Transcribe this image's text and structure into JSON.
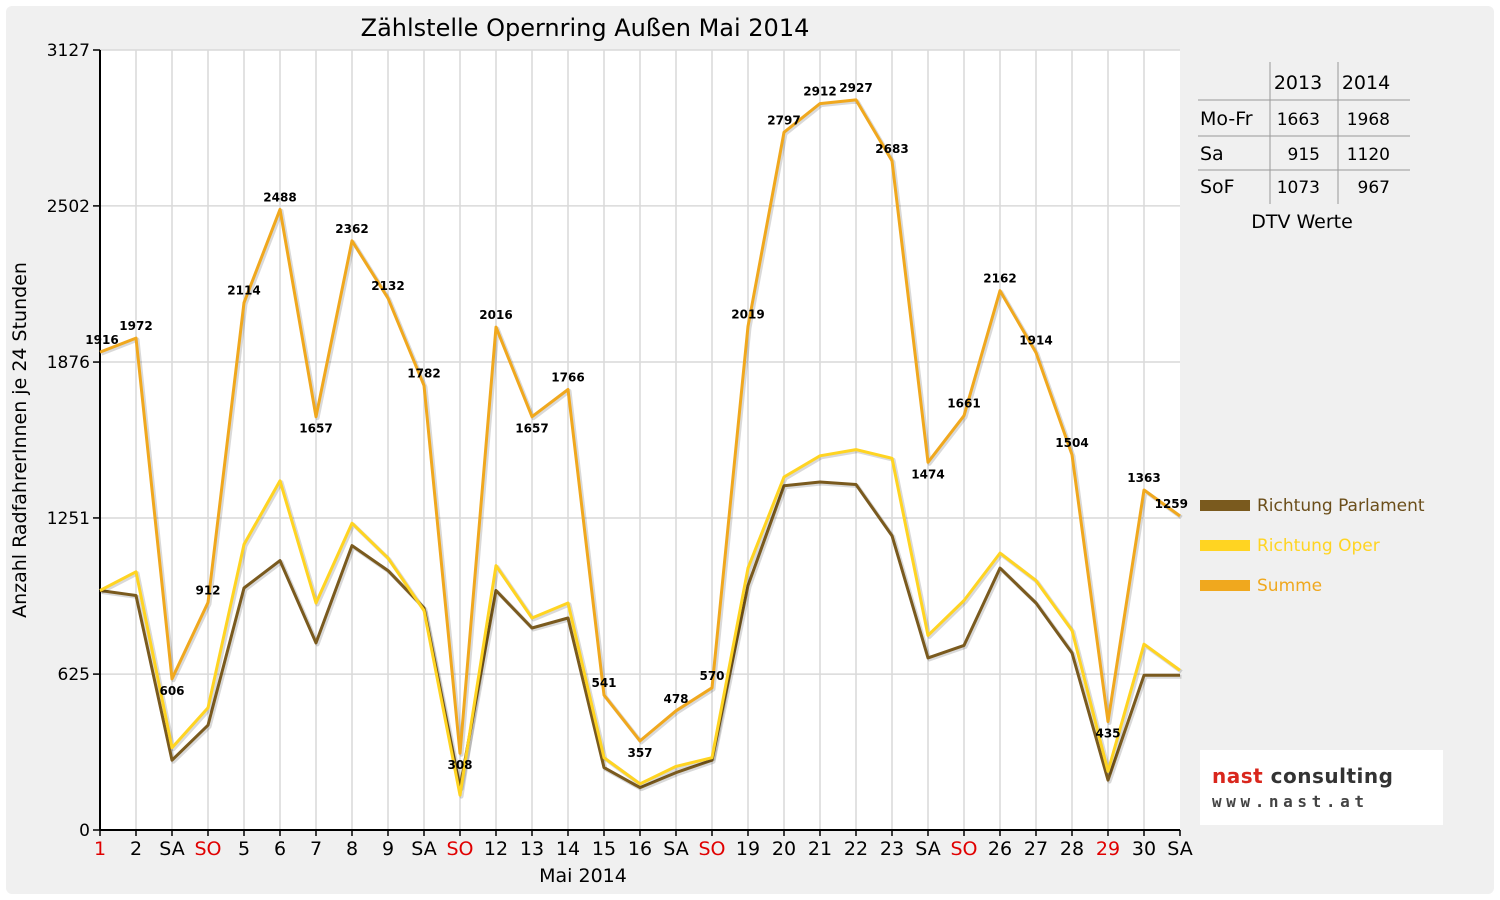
{
  "chart_data": {
    "type": "line",
    "title": "Zählstelle Opernring Außen Mai 2014",
    "xlabel": "Mai 2014",
    "ylabel": "Anzahl RadfahrerInnen je 24 Stunden",
    "ylim": [
      0,
      3127
    ],
    "yticks": [
      "0",
      "625",
      "1251",
      "1876",
      "2502",
      "3127"
    ],
    "grid": true,
    "legend_position": "right",
    "categories": [
      "1",
      "2",
      "SA",
      "SO",
      "5",
      "6",
      "7",
      "8",
      "9",
      "SA",
      "SO",
      "12",
      "13",
      "14",
      "15",
      "16",
      "SA",
      "SO",
      "19",
      "20",
      "21",
      "22",
      "23",
      "SA",
      "SO",
      "26",
      "27",
      "28",
      "29",
      "30",
      "SA"
    ],
    "red_categories": [
      0,
      3,
      10,
      17,
      24,
      28
    ],
    "series": [
      {
        "name": "Richtung Parlament",
        "color": "#7a5a1e",
        "values": [
          960,
          940,
          280,
          420,
          970,
          1080,
          750,
          1140,
          1040,
          890,
          170,
          960,
          810,
          850,
          250,
          170,
          230,
          280,
          980,
          1380,
          1395,
          1385,
          1180,
          690,
          740,
          1050,
          910,
          710,
          200,
          620,
          620
        ]
      },
      {
        "name": "Richtung Oper",
        "color": "#ffd422",
        "values": [
          960,
          1035,
          330,
          490,
          1145,
          1400,
          910,
          1230,
          1090,
          880,
          140,
          1060,
          850,
          910,
          290,
          185,
          255,
          290,
          1050,
          1415,
          1500,
          1525,
          1490,
          780,
          920,
          1110,
          1000,
          800,
          235,
          745,
          640
        ]
      },
      {
        "name": "Summe",
        "color": "#f0a81e",
        "values": [
          1916,
          1972,
          606,
          912,
          2114,
          2488,
          1657,
          2362,
          2132,
          1782,
          308,
          2016,
          1657,
          1766,
          541,
          357,
          478,
          570,
          2019,
          2797,
          2912,
          2927,
          2683,
          1474,
          1661,
          2162,
          1914,
          1504,
          435,
          1363,
          1259
        ]
      }
    ],
    "data_labels": [
      "1916",
      "1972",
      "606",
      "912",
      "2114",
      "2488",
      "1657",
      "2362",
      "2132",
      "1782",
      "308",
      "2016",
      "1657",
      "1766",
      "541",
      "357",
      "478",
      "570",
      "2019",
      "2797",
      "2912",
      "2927",
      "2683",
      "1474",
      "1661",
      "2162",
      "1914",
      "1504",
      "435",
      "1363",
      "1259"
    ]
  },
  "dtv_table": {
    "headers": [
      "",
      "2013",
      "2014"
    ],
    "rows": [
      {
        "label": "Mo-Fr",
        "y2013": "1663",
        "y2014": "1968"
      },
      {
        "label": "Sa",
        "y2013": "915",
        "y2014": "1120"
      },
      {
        "label": "SoF",
        "y2013": "1073",
        "y2014": "967"
      }
    ],
    "caption": "DTV Werte"
  },
  "logo": {
    "name_part1": "nast",
    "name_part2": " consulting",
    "url": "www.nast.at"
  }
}
